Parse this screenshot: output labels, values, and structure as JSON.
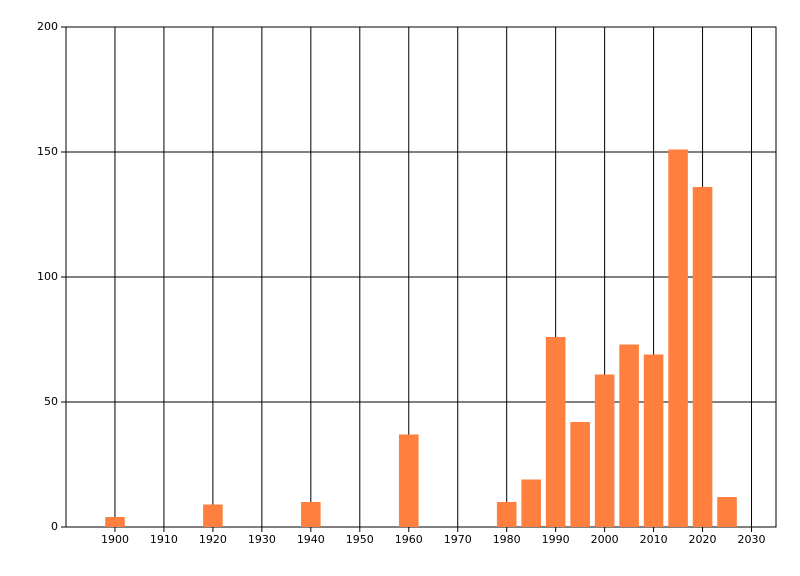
{
  "chart_data": {
    "type": "bar",
    "x": [
      1900,
      1920,
      1940,
      1960,
      1980,
      1985,
      1990,
      1995,
      2000,
      2005,
      2010,
      2015,
      2020,
      2025
    ],
    "values": [
      4,
      9,
      10,
      37,
      10,
      19,
      76,
      42,
      61,
      73,
      69,
      151,
      136,
      12
    ],
    "color": "#ff7f3f",
    "xlim": [
      1890,
      2035
    ],
    "xticks": [
      1900,
      1910,
      1920,
      1930,
      1940,
      1950,
      1960,
      1970,
      1980,
      1990,
      2000,
      2010,
      2020,
      2030
    ],
    "ylim": [
      0,
      200
    ],
    "yticks": [
      0,
      50,
      100,
      150,
      200
    ],
    "grid": true
  }
}
